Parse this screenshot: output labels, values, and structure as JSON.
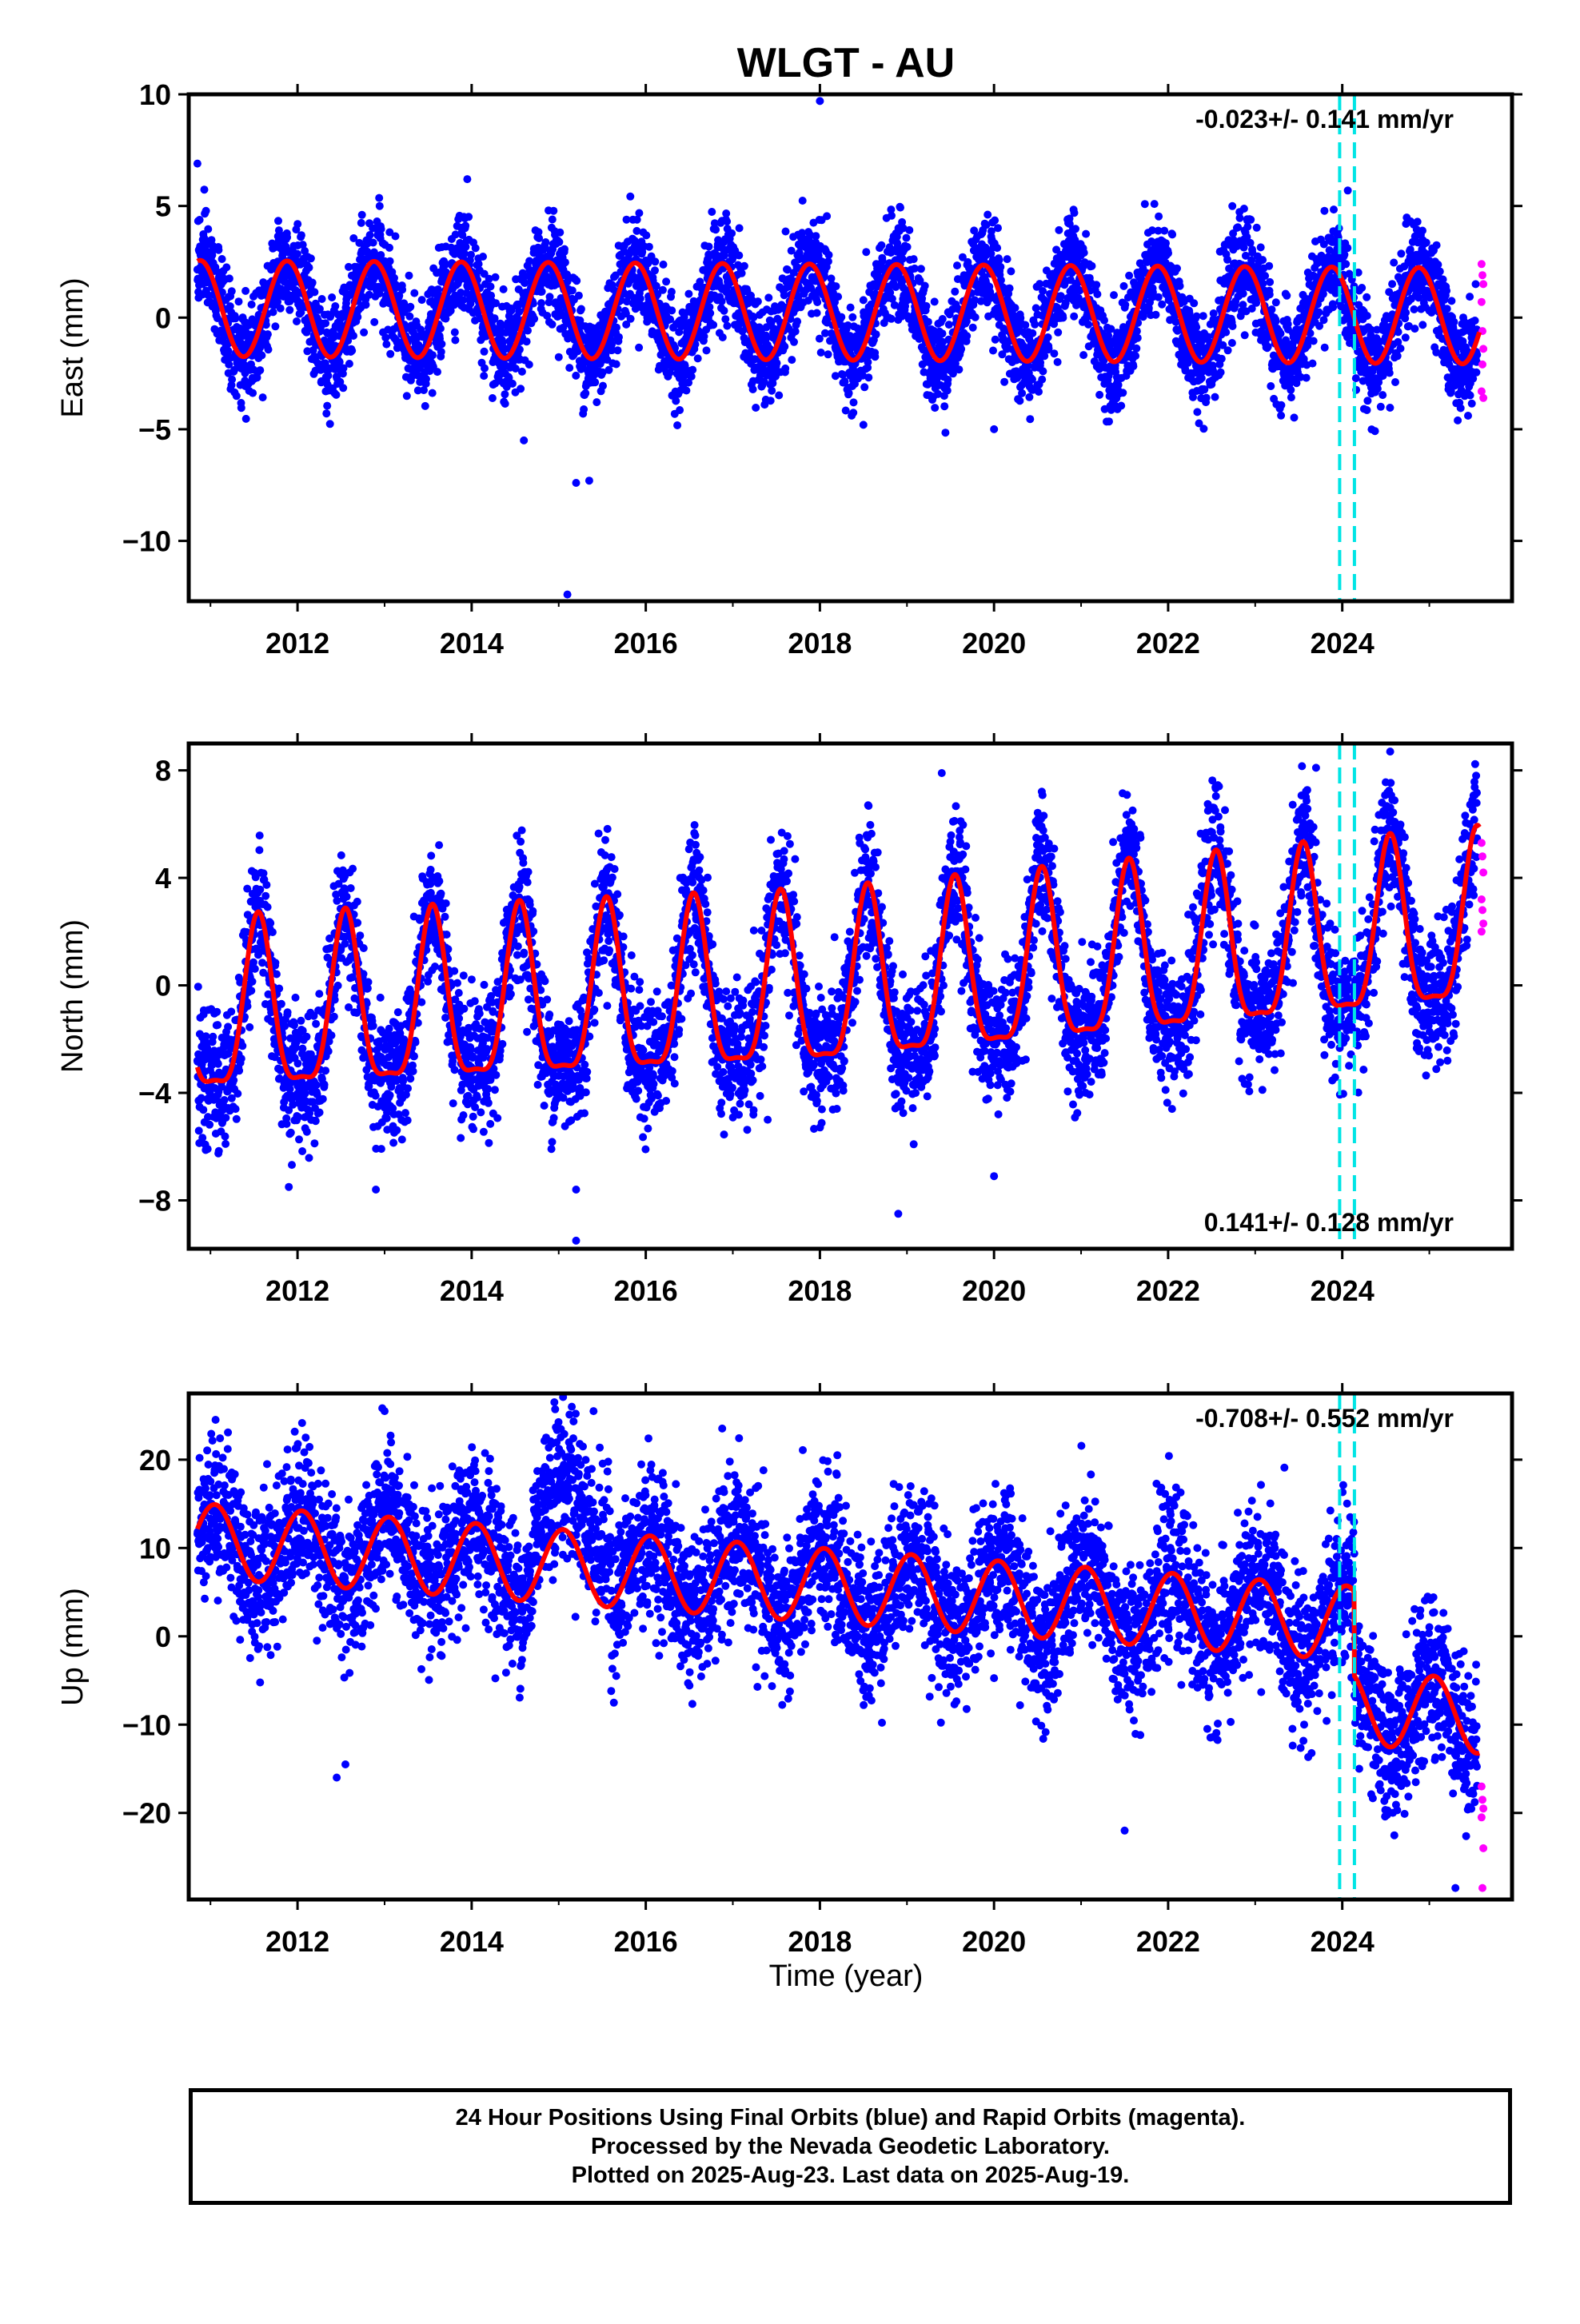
{
  "title": "WLGT - AU",
  "colors": {
    "final": "#0000ff",
    "rapid": "#ff00ff",
    "model": "#ff0000",
    "event": "#00e5e5",
    "frame": "#000000"
  },
  "x_axis": {
    "label": "Time (year)",
    "range": [
      2010.75,
      2025.95
    ],
    "ticks": [
      2012,
      2014,
      2016,
      2018,
      2020,
      2022,
      2024
    ],
    "tick_labels": [
      "2012",
      "2014",
      "2016",
      "2018",
      "2020",
      "2022",
      "2024"
    ]
  },
  "event_lines": [
    2023.97,
    2024.14
  ],
  "chart_data": [
    {
      "type": "scatter",
      "component": "east",
      "ylabel": "East (mm)",
      "ylim": [
        -12.7,
        10
      ],
      "yticks": [
        10,
        5,
        0,
        -5,
        -10
      ],
      "ytick_labels": [
        "10",
        "5",
        "0",
        "−5",
        "−10"
      ],
      "velocity_label": "-0.023+/- 0.141 mm/yr",
      "velocity_position": "top-right",
      "grid": false,
      "series": [
        {
          "role": "final-orbits",
          "color": "blue",
          "data_start": 2010.85,
          "data_end": 2025.55,
          "mean": 0.2,
          "annual_amplitude": 2.2,
          "annual_peak": 0.88,
          "scatter_sd": 1.1
        },
        {
          "role": "rapid-orbits",
          "color": "magenta",
          "points": [
            [
              2025.6,
              2.4
            ],
            [
              2025.61,
              1.9
            ],
            [
              2025.62,
              1.5
            ],
            [
              2025.6,
              0.7
            ],
            [
              2025.61,
              -0.6
            ],
            [
              2025.62,
              -1.4
            ],
            [
              2025.61,
              -2.1
            ],
            [
              2025.6,
              -3.3
            ],
            [
              2025.62,
              -3.6
            ]
          ]
        },
        {
          "role": "model",
          "color": "red",
          "offset": 0.25,
          "trend": -0.023,
          "annual_amplitude": 2.15,
          "annual_peak": 0.88
        }
      ],
      "outliers": [
        [
          2018.0,
          9.7
        ],
        [
          2015.1,
          -12.4
        ],
        [
          2015.2,
          -7.4
        ],
        [
          2015.35,
          -7.3
        ],
        [
          2013.95,
          6.2
        ],
        [
          2020.0,
          -5.0
        ],
        [
          2014.6,
          -5.5
        ],
        [
          2010.85,
          6.9
        ],
        [
          2018.5,
          -4.8
        ]
      ]
    },
    {
      "type": "scatter",
      "component": "north",
      "ylabel": "North (mm)",
      "ylim": [
        -9.8,
        9
      ],
      "yticks": [
        8,
        4,
        0,
        -4,
        -8
      ],
      "ytick_labels": [
        "8",
        "4",
        "0",
        "−4",
        "−8"
      ],
      "velocity_label": "0.141+/- 0.128 mm/yr",
      "velocity_position": "bottom-right",
      "grid": false,
      "series": [
        {
          "role": "final-orbits",
          "color": "blue",
          "data_start": 2010.85,
          "data_end": 2025.55,
          "mean": 0.0,
          "annual_amplitude": 3.2,
          "annual_peak": 0.55,
          "scatter_sd": 1.2
        },
        {
          "role": "rapid-orbits",
          "color": "magenta",
          "points": [
            [
              2025.6,
              5.3
            ],
            [
              2025.61,
              4.8
            ],
            [
              2025.62,
              4.2
            ],
            [
              2025.6,
              3.2
            ],
            [
              2025.61,
              2.8
            ],
            [
              2025.62,
              2.3
            ],
            [
              2025.6,
              2.0
            ]
          ]
        },
        {
          "role": "model",
          "color": "red",
          "offset": -0.35,
          "trend": 0.141,
          "annual_amplitude": 3.1,
          "annual_peak": 0.55
        }
      ],
      "outliers": [
        [
          2015.2,
          -9.5
        ],
        [
          2015.2,
          -7.6
        ],
        [
          2018.9,
          -8.5
        ],
        [
          2020.0,
          -7.1
        ],
        [
          2019.4,
          7.9
        ],
        [
          2024.55,
          8.7
        ],
        [
          2011.9,
          -7.5
        ],
        [
          2012.9,
          -7.6
        ],
        [
          2017.4,
          -5.0
        ]
      ]
    },
    {
      "type": "scatter",
      "component": "up",
      "ylabel": "Up (mm)",
      "ylim": [
        -29.8,
        27.5
      ],
      "yticks": [
        20,
        10,
        0,
        -10,
        -20
      ],
      "ytick_labels": [
        "20",
        "10",
        "0",
        "−10",
        "−20"
      ],
      "velocity_label": "-0.708+/- 0.552 mm/yr",
      "velocity_position": "top-right",
      "grid": false,
      "series": [
        {
          "role": "final-orbits",
          "color": "blue",
          "data_start": 2010.85,
          "data_end": 2025.55,
          "mean": 1.0,
          "annual_amplitude": 4.5,
          "annual_peak": 0.05,
          "scatter_sd": 4.2
        },
        {
          "role": "rapid-orbits",
          "color": "magenta",
          "points": [
            [
              2025.6,
              -17.0
            ],
            [
              2025.61,
              -18.5
            ],
            [
              2025.62,
              -19.5
            ],
            [
              2025.6,
              -20.5
            ],
            [
              2025.62,
              -24.0
            ],
            [
              2025.61,
              -28.5
            ]
          ]
        },
        {
          "role": "model",
          "color": "red",
          "offset": 5.8,
          "trend": -0.708,
          "annual_amplitude": 4.2,
          "annual_peak": 0.05,
          "step_epoch": 2024.14,
          "step": -9.5
        }
      ],
      "outliers": [
        [
          2014.95,
          26.5
        ],
        [
          2015.15,
          26.0
        ],
        [
          2015.4,
          25.5
        ],
        [
          2013.0,
          25.5
        ],
        [
          2012.45,
          -16.0
        ],
        [
          2012.55,
          -14.5
        ],
        [
          2025.3,
          -28.5
        ],
        [
          2022.8,
          14.0
        ],
        [
          2018.2,
          20.5
        ],
        [
          2011.65,
          19.5
        ],
        [
          2021.5,
          -22.0
        ]
      ]
    }
  ],
  "footer": {
    "line1": "24 Hour Positions Using Final Orbits (blue) and Rapid Orbits (magenta).",
    "line2": "Processed by the Nevada Geodetic Laboratory.",
    "line3": "Plotted on 2025-Aug-23. Last data on 2025-Aug-19."
  }
}
